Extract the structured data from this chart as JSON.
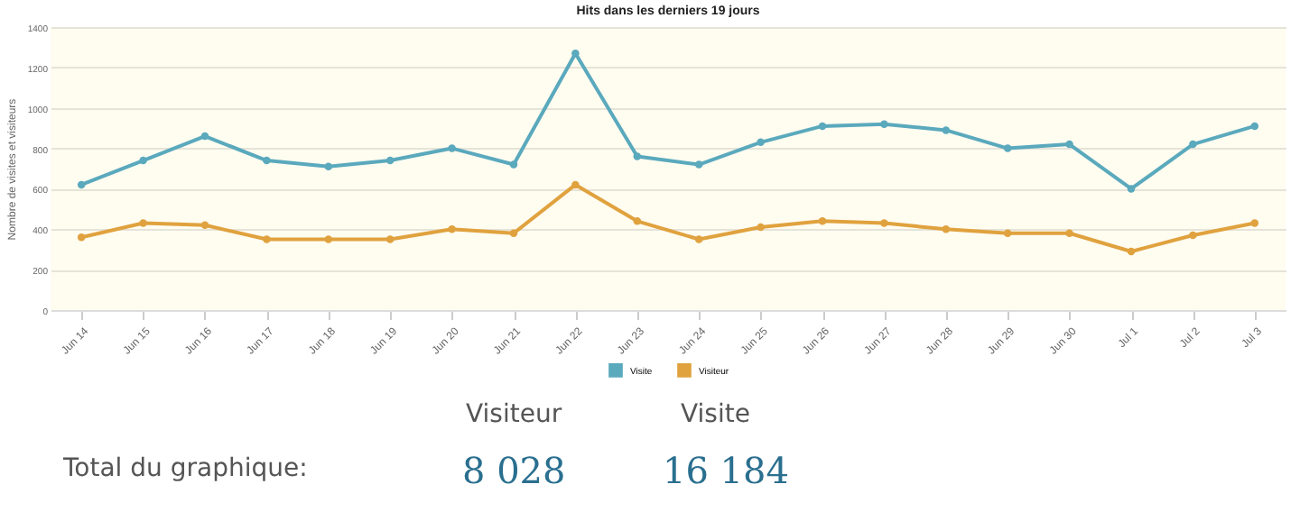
{
  "chart_data": {
    "type": "line",
    "title": "Hits dans les derniers 19 jours",
    "ylabel": "Nombre de visites et visiteurs",
    "categories": [
      "Jun 14",
      "Jun 15",
      "Jun 16",
      "Jun 17",
      "Jun 18",
      "Jun 19",
      "Jun 20",
      "Jun 21",
      "Jun 22",
      "Jun 23",
      "Jun 24",
      "Jun 25",
      "Jun 26",
      "Jun 27",
      "Jun 28",
      "Jun 29",
      "Jun 30",
      "Jul 1",
      "Jul 2",
      "Jul 3"
    ],
    "series": [
      {
        "name": "Visite",
        "color": "#5aa9bd",
        "values": [
          620,
          740,
          860,
          740,
          710,
          740,
          800,
          720,
          1270,
          760,
          720,
          830,
          910,
          920,
          890,
          800,
          820,
          600,
          820,
          910
        ]
      },
      {
        "name": "Visiteur",
        "color": "#e0a23e",
        "values": [
          360,
          430,
          420,
          350,
          350,
          350,
          400,
          380,
          620,
          440,
          350,
          410,
          440,
          430,
          400,
          380,
          380,
          290,
          370,
          430
        ]
      }
    ],
    "ylim": [
      0,
      1400
    ],
    "yticks": [
      0,
      200,
      400,
      600,
      800,
      1000,
      1200,
      1400
    ],
    "grid": "y",
    "legend": "bottom",
    "marker": "circle",
    "line_style": "solid",
    "annotations": [
      "Total du graphique:",
      "Visiteur",
      "8 028",
      "Visite",
      "16 184"
    ]
  }
}
